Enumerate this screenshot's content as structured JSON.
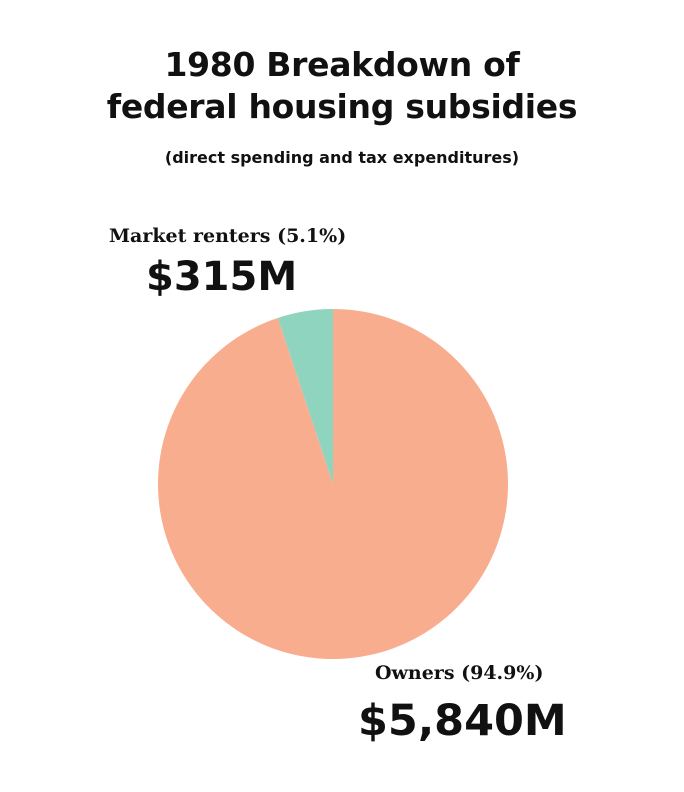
{
  "title_line1": "1980 Breakdown of",
  "title_line2": "federal housing subsidies",
  "subtitle": "(direct spending and tax expenditures)",
  "chart_data": {
    "type": "pie",
    "title": "1980 Breakdown of federal housing subsidies",
    "subtitle": "(direct spending and tax expenditures)",
    "unit": "USD millions",
    "slices": [
      {
        "name": "Market renters",
        "label": "Market renters (5.1%)",
        "value": 315,
        "value_label": "$315M",
        "percent": 5.1,
        "color": "#8fd4be"
      },
      {
        "name": "Owners",
        "label": "Owners (94.9%)",
        "value": 5840,
        "value_label": "$5,840M",
        "percent": 94.9,
        "color": "#f9ad8f"
      }
    ]
  }
}
